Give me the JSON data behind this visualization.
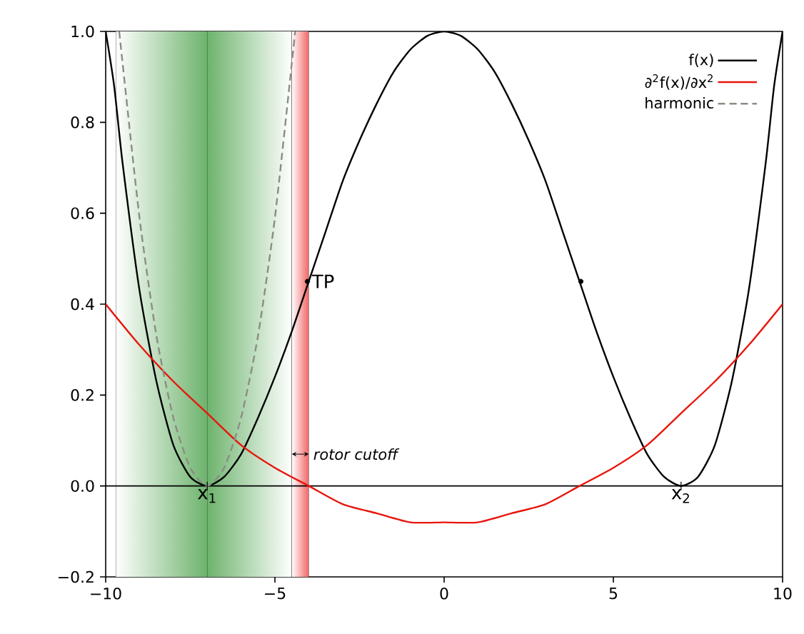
{
  "chart_data": {
    "type": "line",
    "xlim": [
      -10,
      10
    ],
    "ylim": [
      -0.2,
      1.0
    ],
    "xticks": [
      {
        "value": -10,
        "label": "−10"
      },
      {
        "value": -5,
        "label": "−5"
      },
      0,
      5,
      10
    ],
    "yticks": [
      {
        "value": -0.2,
        "label": "−0.2"
      },
      {
        "value": 0,
        "label": "0.0"
      },
      {
        "value": 0.2,
        "label": "0.2"
      },
      {
        "value": 0.4,
        "label": "0.4"
      },
      {
        "value": 0.6,
        "label": "0.6"
      },
      {
        "value": 0.8,
        "label": "0.8"
      },
      {
        "value": 1.0,
        "label": "1.0"
      }
    ],
    "legend": "top right",
    "grid": false,
    "series": [
      {
        "name": "f(x)",
        "color": "#000000",
        "line_style": "solid",
        "x": [
          -10,
          -9.75,
          -9.5,
          -9,
          -8.5,
          -8,
          -7.5,
          -7,
          -6.5,
          -6,
          -5.5,
          -5,
          -4.5,
          -4,
          -3.5,
          -3,
          -2.5,
          -2,
          -1.5,
          -1,
          -0.5,
          0,
          0.5,
          1,
          1.5,
          2,
          2.5,
          3,
          3.5,
          4,
          4.5,
          5,
          5.5,
          6,
          6.5,
          7,
          7.5,
          8,
          8.5,
          9,
          9.5,
          9.75,
          10
        ],
        "values": [
          1.0,
          0.88,
          0.71,
          0.43,
          0.23,
          0.09,
          0.02,
          0,
          0.02,
          0.07,
          0.15,
          0.24,
          0.34,
          0.45,
          0.56,
          0.67,
          0.76,
          0.84,
          0.91,
          0.96,
          0.99,
          1.0,
          0.99,
          0.96,
          0.91,
          0.84,
          0.76,
          0.67,
          0.56,
          0.45,
          0.34,
          0.24,
          0.15,
          0.07,
          0.02,
          0,
          0.02,
          0.09,
          0.23,
          0.43,
          0.71,
          0.88,
          1.0
        ]
      },
      {
        "name": "∂$^{2}$f(x)/∂x$^{2}$",
        "color": "#e8160c",
        "line_style": "solid",
        "x": [
          -10,
          -9,
          -8,
          -7,
          -6,
          -5,
          -4,
          -3,
          -2,
          -1,
          0,
          1,
          2,
          3,
          4,
          5,
          6,
          7,
          8,
          9,
          10
        ],
        "values": [
          0.4,
          0.31,
          0.23,
          0.16,
          0.09,
          0.04,
          0.0,
          -0.04,
          -0.06,
          -0.08,
          -0.08,
          -0.08,
          -0.06,
          -0.04,
          0.0,
          0.04,
          0.09,
          0.16,
          0.23,
          0.31,
          0.4
        ]
      },
      {
        "name": "harmonic",
        "color": "#8c8c84",
        "line_style": "dashed",
        "x": [
          -9.6,
          -9.5,
          -9,
          -8.5,
          -8,
          -7.5,
          -7,
          -6.5,
          -6,
          -5.5,
          -5,
          -4.5,
          -4.4
        ],
        "values": [
          1.0,
          0.93,
          0.59,
          0.33,
          0.15,
          0.04,
          0,
          0.04,
          0.15,
          0.33,
          0.59,
          0.93,
          1.0
        ]
      },
      {
        "type": "scatter",
        "marker": "circle",
        "color": "#000000",
        "x": [
          -4.04,
          4.04
        ],
        "values": [
          0.45,
          0.45
        ]
      }
    ],
    "ref_lines": [
      {
        "axis": "y",
        "value": 0,
        "color": "#000000"
      }
    ],
    "bands": [
      {
        "axis": "x",
        "from": -9.7,
        "to": -7,
        "color": "#6db36d"
      },
      {
        "axis": "x",
        "from": -4.5,
        "to": -7,
        "color": "#6db36d"
      },
      {
        "axis": "x",
        "from": -4.5,
        "to": -4.0,
        "color": "#f26666"
      }
    ],
    "annotations": [
      {
        "text": "TP",
        "x": -4.04,
        "y": 0.45
      },
      {
        "text": "x$_{1}$",
        "x": -7,
        "y": 0
      },
      {
        "text": "x$_{2}$",
        "x": 7,
        "y": 0
      },
      {
        "text": "rotor cutoff",
        "x": -4.0,
        "y": 0.07
      }
    ]
  }
}
